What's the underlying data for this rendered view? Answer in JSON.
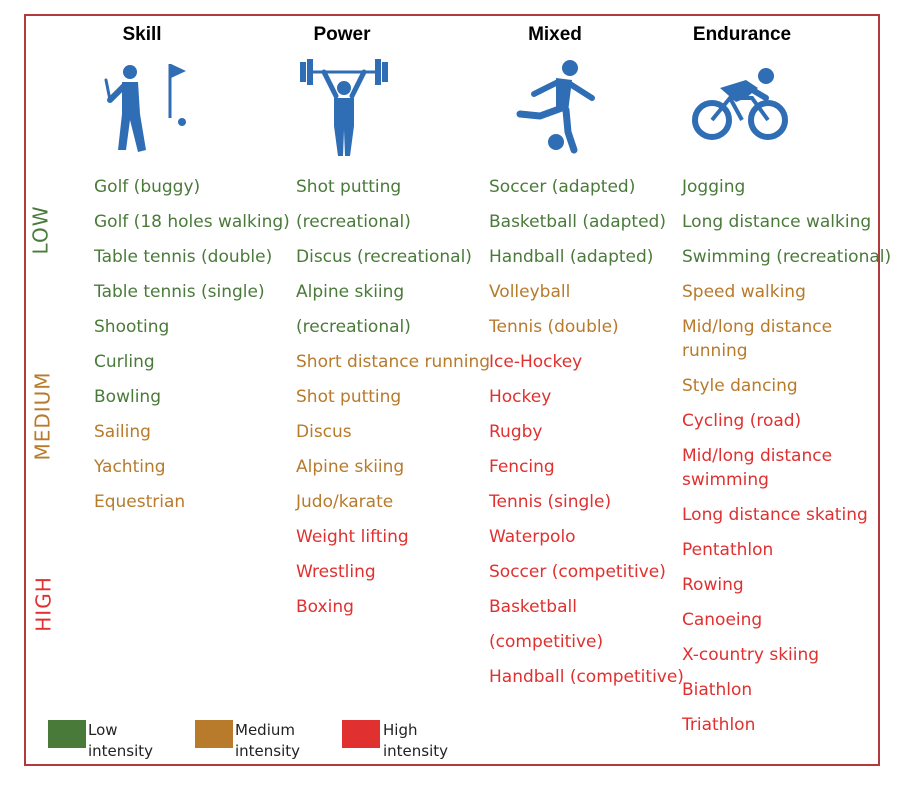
{
  "colors": {
    "low": "#4a7a3a",
    "medium": "#b87a2b",
    "high": "#e03030",
    "frame": "#b23a3a",
    "icon": "#2f6db5"
  },
  "columns": [
    {
      "title": "Skill",
      "icon": "golfer-icon",
      "items": [
        {
          "text": "Golf (buggy)",
          "level": "low"
        },
        {
          "text": "Golf (18 holes walking)",
          "level": "low"
        },
        {
          "text": "Table tennis (double)",
          "level": "low"
        },
        {
          "text": "Table tennis (single)",
          "level": "low"
        },
        {
          "text": "Shooting",
          "level": "low"
        },
        {
          "text": "Curling",
          "level": "low"
        },
        {
          "text": "Bowling",
          "level": "low"
        },
        {
          "text": "Sailing",
          "level": "medium"
        },
        {
          "text": "Yachting",
          "level": "medium"
        },
        {
          "text": "Equestrian",
          "level": "medium"
        }
      ]
    },
    {
      "title": "Power",
      "icon": "weightlifter-icon",
      "items": [
        {
          "text": "Shot putting",
          "level": "low"
        },
        {
          "text": "(recreational)",
          "level": "low"
        },
        {
          "text": "Discus (recreational)",
          "level": "low"
        },
        {
          "text": "Alpine skiing",
          "level": "low"
        },
        {
          "text": "(recreational)",
          "level": "low"
        },
        {
          "text": "Short distance running",
          "level": "medium"
        },
        {
          "text": "Shot putting",
          "level": "medium"
        },
        {
          "text": "Discus",
          "level": "medium"
        },
        {
          "text": "Alpine skiing",
          "level": "medium"
        },
        {
          "text": "Judo/karate",
          "level": "medium"
        },
        {
          "text": "Weight lifting",
          "level": "high"
        },
        {
          "text": "Wrestling",
          "level": "high"
        },
        {
          "text": "Boxing",
          "level": "high"
        }
      ]
    },
    {
      "title": "Mixed",
      "icon": "soccer-player-icon",
      "items": [
        {
          "text": "Soccer (adapted)",
          "level": "low"
        },
        {
          "text": "Basketball (adapted)",
          "level": "low"
        },
        {
          "text": "Handball (adapted)",
          "level": "low"
        },
        {
          "text": "Volleyball",
          "level": "medium"
        },
        {
          "text": "Tennis (double)",
          "level": "medium"
        },
        {
          "text": "Ice-Hockey",
          "level": "high"
        },
        {
          "text": "Hockey",
          "level": "high"
        },
        {
          "text": "Rugby",
          "level": "high"
        },
        {
          "text": "Fencing",
          "level": "high"
        },
        {
          "text": "Tennis (single)",
          "level": "high"
        },
        {
          "text": "Waterpolo",
          "level": "high"
        },
        {
          "text": "Soccer (competitive)",
          "level": "high"
        },
        {
          "text": "Basketball",
          "level": "high"
        },
        {
          "text": "(competitive)",
          "level": "high"
        },
        {
          "text": "Handball (competitive)",
          "level": "high"
        }
      ]
    },
    {
      "title": "Endurance",
      "icon": "cyclist-icon",
      "items": [
        {
          "text": "Jogging",
          "level": "low"
        },
        {
          "text": "Long distance walking",
          "level": "low"
        },
        {
          "text": "Swimming (recreational)",
          "level": "low"
        },
        {
          "text": "Speed walking",
          "level": "medium"
        },
        {
          "text": "Mid/long distance running",
          "level": "medium",
          "wrap": true
        },
        {
          "text": "Style dancing",
          "level": "medium"
        },
        {
          "text": "Cycling (road)",
          "level": "high"
        },
        {
          "text": "Mid/long distance swimming",
          "level": "high",
          "wrap": true
        },
        {
          "text": "Long distance skating",
          "level": "high"
        },
        {
          "text": "Pentathlon",
          "level": "high"
        },
        {
          "text": "Rowing",
          "level": "high"
        },
        {
          "text": "Canoeing",
          "level": "high"
        },
        {
          "text": "X-country skiing",
          "level": "high"
        },
        {
          "text": "Biathlon",
          "level": "high"
        },
        {
          "text": "Triathlon",
          "level": "high"
        }
      ]
    }
  ],
  "side_labels": {
    "low": "LOW",
    "medium": "MEDIUM",
    "high": "HIGH"
  },
  "legend": [
    {
      "label_line1": "Low",
      "label_line2": "intensity",
      "level": "low"
    },
    {
      "label_line1": "Medium",
      "label_line2": "intensity",
      "level": "medium"
    },
    {
      "label_line1": "High",
      "label_line2": "intensity",
      "level": "high"
    }
  ]
}
